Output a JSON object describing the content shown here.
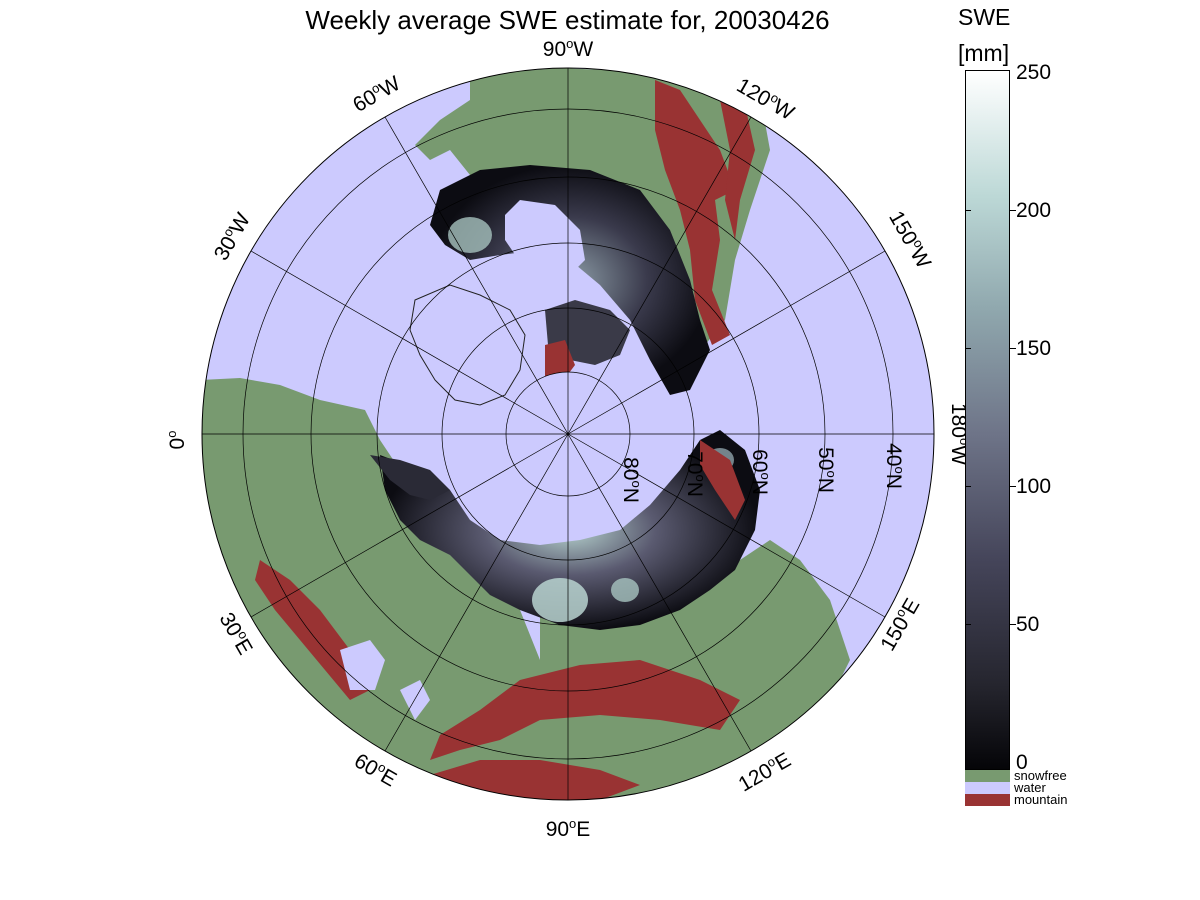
{
  "title": "Weekly average SWE estimate for, 20030426",
  "colorbar": {
    "title_line1": "SWE",
    "title_line2": "[mm]",
    "ticks": [
      "0",
      "50",
      "100",
      "150",
      "200",
      "250"
    ],
    "min": 0,
    "max": 250,
    "categories": [
      {
        "label": "snowfree",
        "color": "#789a70"
      },
      {
        "label": "water",
        "color": "#cccafe"
      },
      {
        "label": "mountain",
        "color": "#993333"
      }
    ]
  },
  "map": {
    "projection": "north-polar-stereographic",
    "longitude_labels": [
      {
        "deg": "90",
        "hem": "W"
      },
      {
        "deg": "120",
        "hem": "W"
      },
      {
        "deg": "150",
        "hem": "W"
      },
      {
        "deg": "180",
        "hem": "W"
      },
      {
        "deg": "150",
        "hem": "E"
      },
      {
        "deg": "120",
        "hem": "E"
      },
      {
        "deg": "90",
        "hem": "E"
      },
      {
        "deg": "60",
        "hem": "E"
      },
      {
        "deg": "30",
        "hem": "E"
      },
      {
        "deg": "0",
        "hem": ""
      },
      {
        "deg": "30",
        "hem": "W"
      },
      {
        "deg": "60",
        "hem": "W"
      }
    ],
    "latitude_labels": [
      {
        "deg": "80",
        "hem": "N"
      },
      {
        "deg": "70",
        "hem": "N"
      },
      {
        "deg": "60",
        "hem": "N"
      },
      {
        "deg": "50",
        "hem": "N"
      },
      {
        "deg": "40",
        "hem": "N"
      }
    ],
    "colors": {
      "water": "#cccafe",
      "snowfree": "#789a70",
      "mountain": "#993333",
      "snow_low": "#0a0a10",
      "snow_mid": "#4a4a5e",
      "snow_high": "#b4d0cc"
    }
  }
}
